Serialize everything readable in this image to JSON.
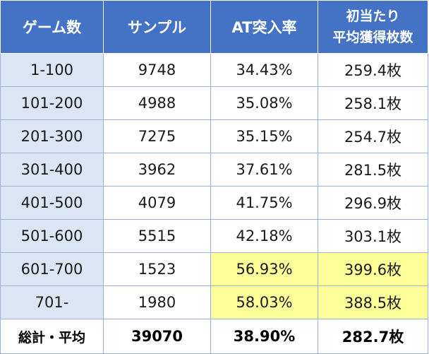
{
  "headers": {
    "games": "ゲーム数",
    "samples": "サンプル",
    "at_rate": "AT突入率",
    "avg_medals_line1": "初当たり",
    "avg_medals_line2": "平均獲得枚数"
  },
  "rows": [
    {
      "range": "1-100",
      "samples": "9748",
      "at_rate": "34.43%",
      "avg": "259.4枚",
      "highlight": false
    },
    {
      "range": "101-200",
      "samples": "4988",
      "at_rate": "35.08%",
      "avg": "258.1枚",
      "highlight": false
    },
    {
      "range": "201-300",
      "samples": "7275",
      "at_rate": "35.15%",
      "avg": "254.7枚",
      "highlight": false
    },
    {
      "range": "301-400",
      "samples": "3962",
      "at_rate": "37.61%",
      "avg": "281.5枚",
      "highlight": false
    },
    {
      "range": "401-500",
      "samples": "4079",
      "at_rate": "41.75%",
      "avg": "296.9枚",
      "highlight": false
    },
    {
      "range": "501-600",
      "samples": "5515",
      "at_rate": "42.18%",
      "avg": "303.1枚",
      "highlight": false
    },
    {
      "range": "601-700",
      "samples": "1523",
      "at_rate": "56.93%",
      "avg": "399.6枚",
      "highlight": true
    },
    {
      "range": "701-",
      "samples": "1980",
      "at_rate": "58.03%",
      "avg": "388.5枚",
      "highlight": true
    }
  ],
  "total": {
    "label": "総計・平均",
    "samples": "39070",
    "at_rate": "38.90%",
    "avg": "282.7枚"
  },
  "colors": {
    "header_bg": "#4472c4",
    "range_bg": "#dae6f4",
    "highlight_bg": "#ffff99"
  }
}
